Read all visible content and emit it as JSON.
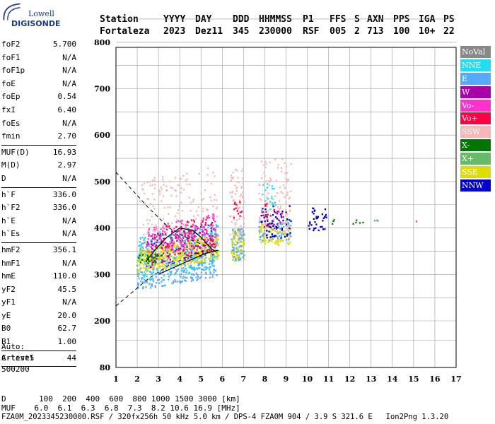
{
  "logo": {
    "line1": "Lowell",
    "line2": "DIGISONDE"
  },
  "header": {
    "row1": [
      "Station",
      "YYYY",
      "DAY",
      "DDD",
      "HHMMSS",
      "P1",
      "FFS",
      "S",
      "AXN",
      "PPS",
      "IGA",
      "PS"
    ],
    "row2": [
      "Fortaleza",
      "2023",
      "Dez11",
      "345",
      "230000",
      "RSF",
      "005",
      "2",
      "713",
      "100",
      "10+",
      "22"
    ]
  },
  "params": [
    [
      {
        "k": "foF2",
        "v": "5.700"
      },
      {
        "k": "foF1",
        "v": "N/A"
      },
      {
        "k": "foF1p",
        "v": "N/A"
      },
      {
        "k": "foE",
        "v": "N/A"
      },
      {
        "k": "foEp",
        "v": "0.54"
      },
      {
        "k": "fxI",
        "v": "6.40"
      },
      {
        "k": "foEs",
        "v": "N/A"
      },
      {
        "k": "fmin",
        "v": "2.70"
      }
    ],
    [
      {
        "k": "MUF(D)",
        "v": "16.93"
      },
      {
        "k": "M(D)",
        "v": "2.97"
      },
      {
        "k": "D",
        "v": "N/A"
      }
    ],
    [
      {
        "k": "h`F",
        "v": "336.0"
      },
      {
        "k": "h`F2",
        "v": "336.0"
      },
      {
        "k": "h`E",
        "v": "N/A"
      },
      {
        "k": "h`Es",
        "v": "N/A"
      }
    ],
    [
      {
        "k": "hmF2",
        "v": "356.1"
      },
      {
        "k": "hmF1",
        "v": "N/A"
      },
      {
        "k": "hmE",
        "v": "110.0"
      },
      {
        "k": "yF2",
        "v": "45.5"
      },
      {
        "k": "yF1",
        "v": "N/A"
      },
      {
        "k": "yE",
        "v": "20.0"
      },
      {
        "k": "B0",
        "v": "62.7"
      },
      {
        "k": "B1",
        "v": "1.00"
      }
    ],
    [
      {
        "k": "C-level",
        "v": "44"
      }
    ]
  ],
  "auto": [
    "Auto:",
    "Artist5",
    "500200"
  ],
  "legend": [
    {
      "label": "NoVal",
      "color": "#888888"
    },
    {
      "label": "NNE",
      "color": "#22ddf0"
    },
    {
      "label": "E",
      "color": "#55aaff"
    },
    {
      "label": "W",
      "color": "#aa00aa"
    },
    {
      "label": "Vo-",
      "color": "#ff33cc"
    },
    {
      "label": "Vo+",
      "color": "#ff0044"
    },
    {
      "label": "SSW",
      "color": "#f4b8b8"
    },
    {
      "label": "X-",
      "color": "#007700"
    },
    {
      "label": "X+",
      "color": "#66bb66"
    },
    {
      "label": "SSE",
      "color": "#dddd00"
    },
    {
      "label": "NNW",
      "color": "#0000cc"
    }
  ],
  "footer": {
    "line1": "D       100  200  400  600  800 1000 1500 3000 [km]",
    "line2": "MUF    6.0  6.1  6.3  6.8  7.3  8.2 10.6 16.9 [MHz]",
    "line3": "FZA0M_2023345230000.RSF / 320fx256h 50 kHz 5.0 km / DPS-4 FZA0M 904 / 3.9 S 321.6 E   Ion2Png 1.3.20"
  },
  "chart_data": {
    "type": "scatter",
    "title": "",
    "xlabel": "",
    "ylabel": "",
    "xlim": [
      1,
      17
    ],
    "ylim": [
      80,
      900
    ],
    "xticks": [
      1,
      2,
      3,
      4,
      5,
      6,
      7,
      8,
      9,
      10,
      11,
      12,
      13,
      14,
      15,
      16,
      17
    ],
    "yticks": [
      80,
      200,
      300,
      400,
      500,
      600,
      700,
      800,
      900
    ],
    "grid": true,
    "legend_position": "right",
    "clusters": [
      {
        "name": "E",
        "x": [
          1.95,
          5.8
        ],
        "y": [
          282,
          395
        ],
        "n": 520
      },
      {
        "name": "NNE",
        "x": [
          2.0,
          5.8
        ],
        "y": [
          300,
          400
        ],
        "n": 160
      },
      {
        "name": "SSE",
        "x": [
          2.0,
          5.8
        ],
        "y": [
          320,
          372
        ],
        "n": 380
      },
      {
        "name": "W",
        "x": [
          2.4,
          5.6
        ],
        "y": [
          330,
          400
        ],
        "n": 140
      },
      {
        "name": "Vo-",
        "x": [
          2.4,
          5.7
        ],
        "y": [
          345,
          420
        ],
        "n": 170
      },
      {
        "name": "Vo+",
        "x": [
          2.6,
          5.6
        ],
        "y": [
          340,
          415
        ],
        "n": 80
      },
      {
        "name": "SSW",
        "x": [
          2.1,
          5.8
        ],
        "y": [
          385,
          520
        ],
        "n": 150
      },
      {
        "name": "X-",
        "x": [
          2.0,
          3.2
        ],
        "y": [
          325,
          345
        ],
        "n": 25
      },
      {
        "name": "E",
        "x": [
          6.4,
          7.0
        ],
        "y": [
          330,
          400
        ],
        "n": 90
      },
      {
        "name": "SSE",
        "x": [
          6.4,
          7.0
        ],
        "y": [
          330,
          395
        ],
        "n": 50
      },
      {
        "name": "SSW",
        "x": [
          6.3,
          7.0
        ],
        "y": [
          380,
          530
        ],
        "n": 70
      },
      {
        "name": "Vo+",
        "x": [
          6.5,
          6.9
        ],
        "y": [
          420,
          460
        ],
        "n": 12
      },
      {
        "name": "SSE",
        "x": [
          7.7,
          9.2
        ],
        "y": [
          365,
          410
        ],
        "n": 90
      },
      {
        "name": "E",
        "x": [
          7.7,
          9.2
        ],
        "y": [
          375,
          420
        ],
        "n": 60
      },
      {
        "name": "SSW",
        "x": [
          7.7,
          9.2
        ],
        "y": [
          390,
          550
        ],
        "n": 110
      },
      {
        "name": "NNW",
        "x": [
          7.8,
          9.2
        ],
        "y": [
          380,
          450
        ],
        "n": 55
      },
      {
        "name": "NNE",
        "x": [
          7.8,
          8.5
        ],
        "y": [
          440,
          500
        ],
        "n": 20
      },
      {
        "name": "Vo+",
        "x": [
          7.8,
          8.8
        ],
        "y": [
          400,
          460
        ],
        "n": 15
      },
      {
        "name": "W",
        "x": [
          8.0,
          9.0
        ],
        "y": [
          400,
          440
        ],
        "n": 15
      },
      {
        "name": "NNW",
        "x": [
          10.0,
          10.9
        ],
        "y": [
          395,
          445
        ],
        "n": 35
      },
      {
        "name": "X-",
        "x": [
          11.1,
          11.3
        ],
        "y": [
          400,
          420
        ],
        "n": 3
      },
      {
        "name": "X-",
        "x": [
          12.1,
          12.6
        ],
        "y": [
          405,
          420
        ],
        "n": 5
      },
      {
        "name": "X+",
        "x": [
          13.0,
          13.3
        ],
        "y": [
          410,
          420
        ],
        "n": 3
      },
      {
        "name": "Vo-",
        "x": [
          15.1,
          15.1
        ],
        "y": [
          415,
          418
        ],
        "n": 1
      }
    ],
    "trace_profile": {
      "x": [
        2.45,
        2.9,
        3.4,
        4.0,
        4.6,
        5.0,
        5.5,
        5.7
      ],
      "y": [
        330,
        356,
        380,
        400,
        395,
        380,
        355,
        349
      ]
    },
    "dashed_lines": [
      {
        "x": [
          1.0,
          2.5,
          3.5,
          4.5,
          5.4
        ],
        "y": [
          520,
          445,
          400,
          375,
          358
        ]
      },
      {
        "x": [
          1.0,
          2.5,
          3.5,
          4.5,
          5.7
        ],
        "y": [
          232,
          290,
          320,
          340,
          360
        ]
      }
    ]
  }
}
